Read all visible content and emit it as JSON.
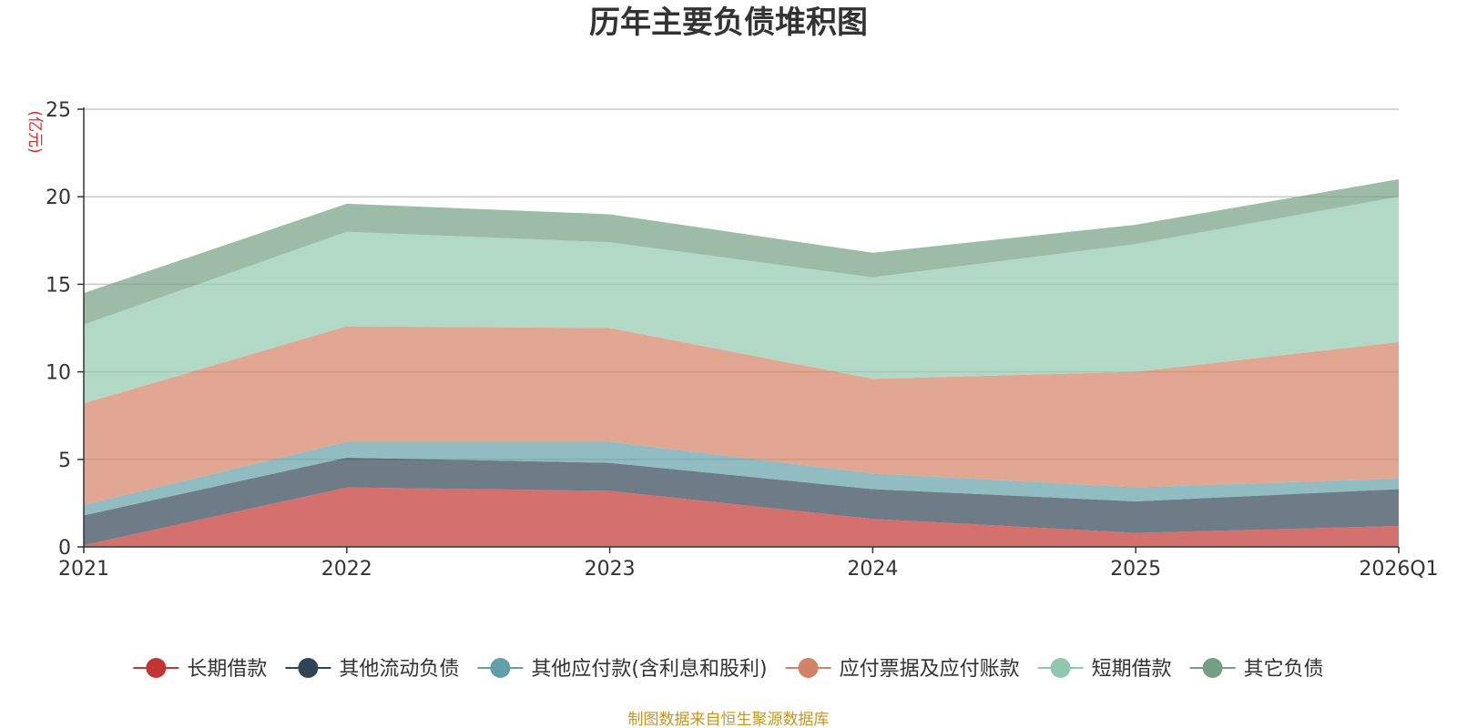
{
  "chart_data": {
    "type": "area",
    "stacked": true,
    "title": "历年主要负债堆积图",
    "unit_label": "(亿元)",
    "categories": [
      "2021",
      "2022",
      "2023",
      "2024",
      "2025",
      "2026Q1"
    ],
    "ylim": [
      0,
      25
    ],
    "yticks": [
      "0",
      "5",
      "10",
      "15",
      "20",
      "25"
    ],
    "grid": true,
    "legend_position": "bottom",
    "series": [
      {
        "name": "长期借款",
        "color": "#c23531",
        "values": [
          0.1,
          3.4,
          3.2,
          1.6,
          0.8,
          1.2
        ]
      },
      {
        "name": "其他流动负债",
        "color": "#2f4554",
        "values": [
          1.7,
          1.7,
          1.6,
          1.7,
          1.8,
          2.1
        ]
      },
      {
        "name": "其他应付款(含利息和股利)",
        "color": "#61a0a8",
        "values": [
          0.6,
          0.9,
          1.2,
          0.9,
          0.8,
          0.6
        ]
      },
      {
        "name": "应付票据及应付账款",
        "color": "#d48265",
        "values": [
          5.8,
          6.6,
          6.5,
          5.4,
          6.6,
          7.8
        ]
      },
      {
        "name": "短期借款",
        "color": "#91c7ae",
        "values": [
          4.5,
          5.4,
          4.9,
          5.8,
          7.3,
          8.3
        ]
      },
      {
        "name": "其它负债",
        "color": "#749f83",
        "values": [
          1.8,
          1.6,
          1.6,
          1.4,
          1.1,
          1.0
        ]
      }
    ]
  },
  "footer": {
    "source": "制图数据来自恒生聚源数据库"
  }
}
